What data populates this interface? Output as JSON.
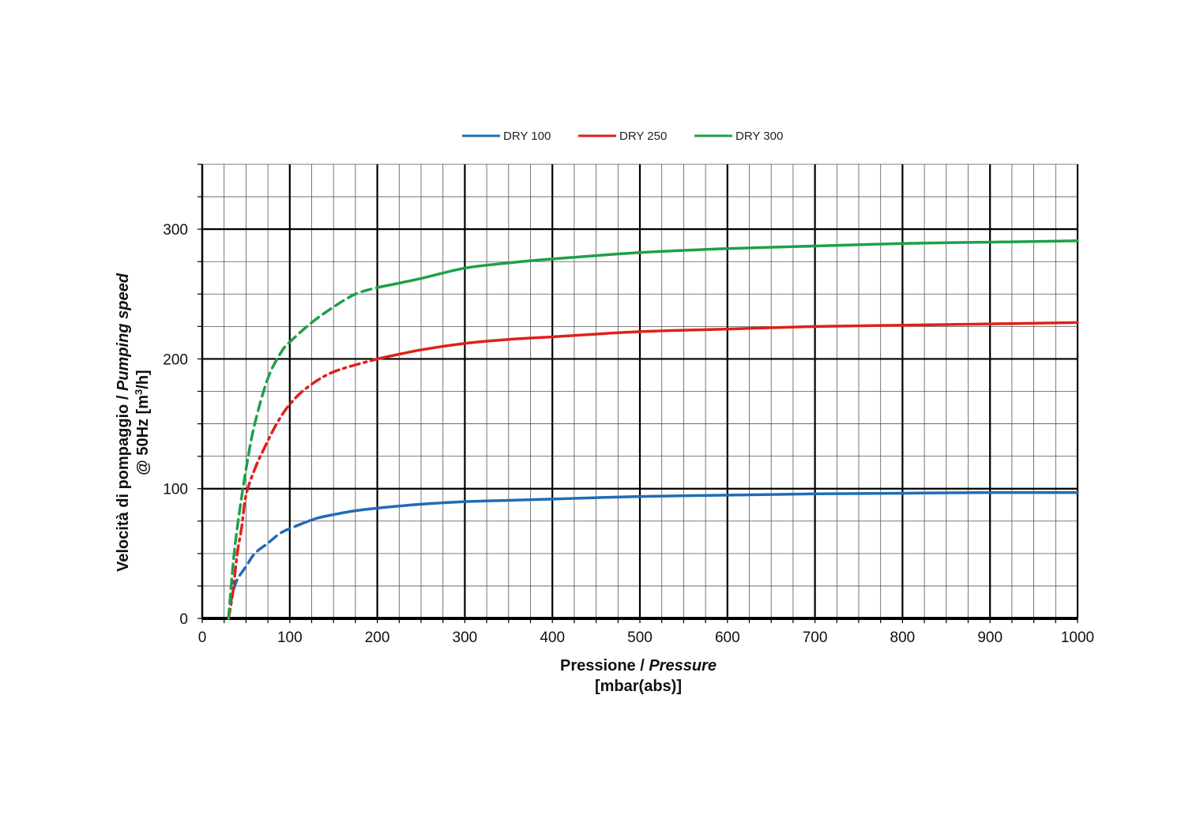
{
  "chart_data": {
    "type": "line",
    "title": "",
    "xlabel": {
      "line1_a": "Pressione / ",
      "line1_b": "Pressure",
      "line2": "[mbar(abs)]"
    },
    "ylabel": {
      "line1_a": "Velocità di pompaggio / ",
      "line1_b": "Pumping speed",
      "line2_a": "@ 50Hz [m",
      "line2_sup": "3",
      "line2_b": "/h]"
    },
    "xlim": [
      0,
      1000
    ],
    "ylim": [
      0,
      350
    ],
    "x_ticks": [
      "0",
      "100",
      "200",
      "300",
      "400",
      "500",
      "600",
      "700",
      "800",
      "900",
      "1000"
    ],
    "y_ticks": [
      "0",
      "100",
      "200",
      "300"
    ],
    "grid": true,
    "legend_position": "top-center",
    "series": [
      {
        "name": "DRY 100",
        "color": "#1f6db5",
        "dashed_until_x": 110,
        "dash_style": "dashed",
        "points": [
          [
            30,
            0
          ],
          [
            32,
            10
          ],
          [
            35,
            20
          ],
          [
            40,
            30
          ],
          [
            50,
            40
          ],
          [
            60,
            50
          ],
          [
            75,
            58
          ],
          [
            90,
            66
          ],
          [
            110,
            72
          ],
          [
            130,
            77
          ],
          [
            150,
            80
          ],
          [
            175,
            83
          ],
          [
            200,
            85
          ],
          [
            250,
            88
          ],
          [
            300,
            90
          ],
          [
            350,
            91
          ],
          [
            400,
            92
          ],
          [
            500,
            94
          ],
          [
            600,
            95
          ],
          [
            700,
            96
          ],
          [
            800,
            96.5
          ],
          [
            900,
            97
          ],
          [
            1000,
            97
          ]
        ]
      },
      {
        "name": "DRY 250",
        "color": "#e0201b",
        "dashed_until_x": 200,
        "dash_style": "dash-dot",
        "points": [
          [
            30,
            0
          ],
          [
            35,
            20
          ],
          [
            40,
            50
          ],
          [
            45,
            70
          ],
          [
            50,
            95
          ],
          [
            60,
            115
          ],
          [
            70,
            130
          ],
          [
            85,
            150
          ],
          [
            100,
            165
          ],
          [
            120,
            178
          ],
          [
            150,
            190
          ],
          [
            200,
            200
          ],
          [
            250,
            207
          ],
          [
            300,
            212
          ],
          [
            350,
            215
          ],
          [
            400,
            217
          ],
          [
            500,
            221
          ],
          [
            600,
            223
          ],
          [
            700,
            225
          ],
          [
            800,
            226
          ],
          [
            900,
            227
          ],
          [
            1000,
            228
          ]
        ]
      },
      {
        "name": "DRY 300",
        "color": "#1ea04a",
        "dashed_until_x": 200,
        "dash_style": "dashed",
        "points": [
          [
            30,
            0
          ],
          [
            35,
            40
          ],
          [
            40,
            70
          ],
          [
            50,
            115
          ],
          [
            60,
            150
          ],
          [
            75,
            185
          ],
          [
            90,
            205
          ],
          [
            100,
            213
          ],
          [
            125,
            228
          ],
          [
            150,
            240
          ],
          [
            175,
            250
          ],
          [
            200,
            255
          ],
          [
            250,
            262
          ],
          [
            300,
            270
          ],
          [
            350,
            274
          ],
          [
            400,
            277
          ],
          [
            500,
            282
          ],
          [
            600,
            285
          ],
          [
            700,
            287
          ],
          [
            800,
            289
          ],
          [
            900,
            290
          ],
          [
            1000,
            291
          ]
        ]
      }
    ]
  }
}
